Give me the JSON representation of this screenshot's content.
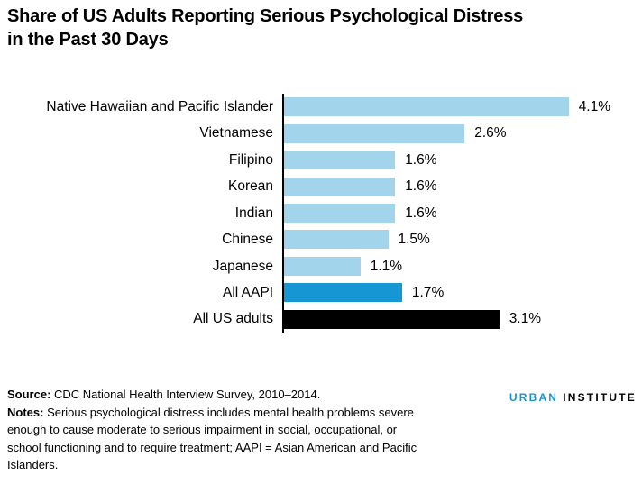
{
  "title": {
    "line1": "Share of US Adults Reporting Serious Psychological Distress",
    "line2": "in the Past 30 Days"
  },
  "chart_data": {
    "type": "bar",
    "orientation": "horizontal",
    "title": "Share of US Adults Reporting Serious Psychological Distress in the Past 30 Days",
    "xlabel": "",
    "ylabel": "",
    "xlim": [
      0,
      4.6
    ],
    "grid": false,
    "legend": null,
    "categories": [
      "Native Hawaiian and Pacific Islander",
      "Vietnamese",
      "Filipino",
      "Korean",
      "Indian",
      "Chinese",
      "Japanese",
      "All AAPI",
      "All US adults"
    ],
    "values": [
      4.1,
      2.6,
      1.6,
      1.6,
      1.6,
      1.5,
      1.1,
      1.7,
      3.1
    ],
    "value_labels": [
      "4.1%",
      "2.6%",
      "1.6%",
      "1.6%",
      "1.6%",
      "1.5%",
      "1.1%",
      "1.7%",
      "3.1%"
    ],
    "bar_colors": [
      "#a2d4ec",
      "#a2d4ec",
      "#a2d4ec",
      "#a2d4ec",
      "#a2d4ec",
      "#a2d4ec",
      "#a2d4ec",
      "#1696d2",
      "#000000"
    ]
  },
  "footer": {
    "source_label": "Source:",
    "source_text": " CDC National Health Interview Survey, 2010–2014.",
    "notes_label": "Notes:",
    "notes_text": " Serious psychological distress includes mental health problems severe enough to cause moderate to serious impairment in social, occupational, or school functioning and to require treatment; AAPI = Asian American and Pacific Islanders."
  },
  "logo": {
    "urban": "URBAN",
    "institute": "INSTITUTE",
    "urban_color": "#1696d2"
  },
  "colors": {
    "bar_light": "#a2d4ec",
    "bar_accent": "#1696d2",
    "bar_black": "#000000",
    "background": "#ffffff"
  }
}
